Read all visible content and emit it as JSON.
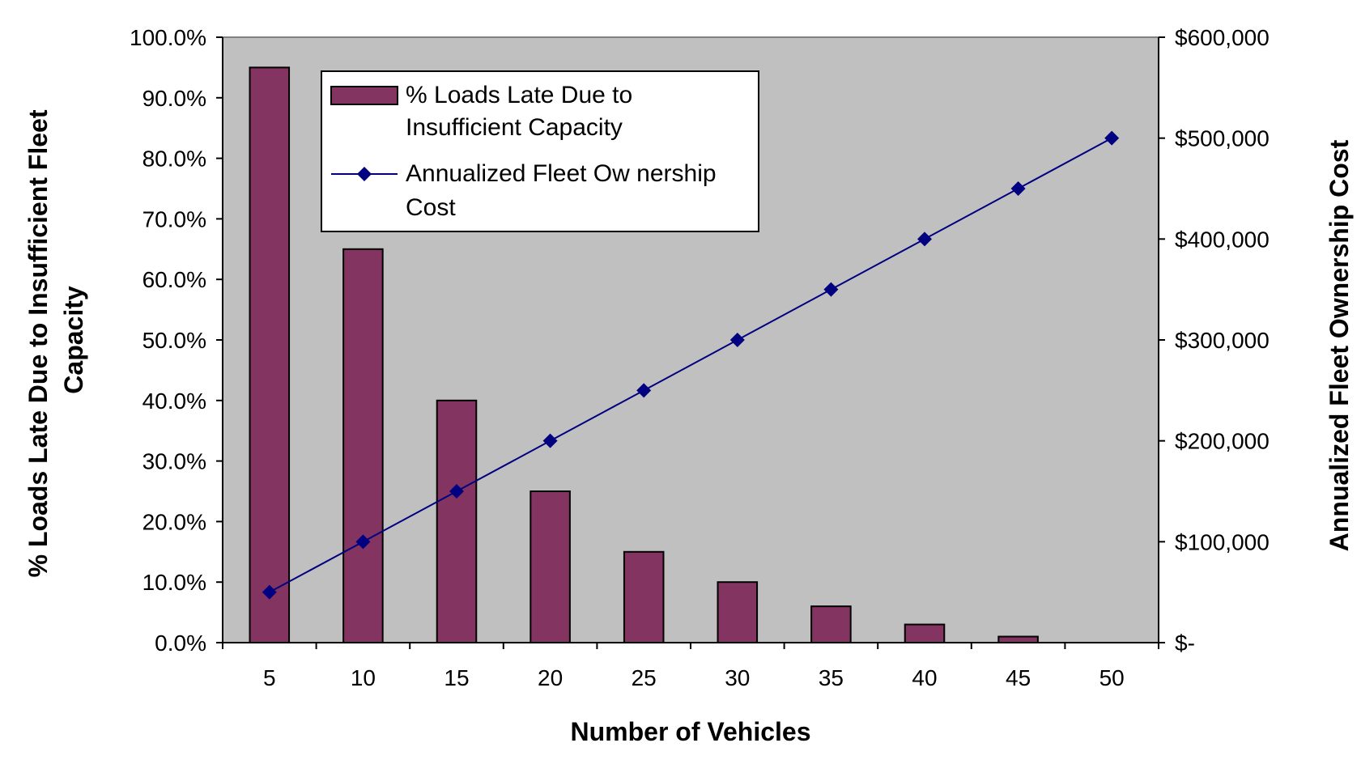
{
  "chart_data": {
    "type": "bar",
    "categories": [
      "5",
      "10",
      "15",
      "20",
      "25",
      "30",
      "35",
      "40",
      "45",
      "50"
    ],
    "series": [
      {
        "name": "% Loads Late Due to Insufficient Capacity",
        "type": "bar",
        "axis": "left",
        "values": [
          95.0,
          65.0,
          40.0,
          25.0,
          15.0,
          10.0,
          6.0,
          3.0,
          1.0,
          0.0
        ],
        "color": "#843460"
      },
      {
        "name": "Annualized Fleet Ownership Cost",
        "type": "line",
        "axis": "right",
        "values": [
          50000,
          100000,
          150000,
          200000,
          250000,
          300000,
          350000,
          400000,
          450000,
          500000
        ],
        "color": "#000080"
      }
    ],
    "xlabel": "Number of Vehicles",
    "ylabel": "% Loads Late Due to Insufficient Fleet Capacity",
    "y2label": "Annualized Fleet Ownership Cost",
    "ylim": [
      0,
      100
    ],
    "y2lim": [
      0,
      600000
    ],
    "yticks": [
      "0.0%",
      "10.0%",
      "20.0%",
      "30.0%",
      "40.0%",
      "50.0%",
      "60.0%",
      "70.0%",
      "80.0%",
      "90.0%",
      "100.0%"
    ],
    "y2ticks": [
      "$-",
      "$100,000",
      "$200,000",
      "$300,000",
      "$400,000",
      "$500,000",
      "$600,000"
    ],
    "legend": {
      "placement": "top-left",
      "entries": [
        [
          "% Loads Late Due to",
          "Insufficient Capacity"
        ],
        [
          "Annualized Fleet Ow nership",
          "Cost"
        ]
      ]
    },
    "ylabel_lines": [
      "% Loads Late Due to Insufficient Fleet",
      "Capacity"
    ],
    "plot_background": "#C0C0C0",
    "grid": false
  }
}
